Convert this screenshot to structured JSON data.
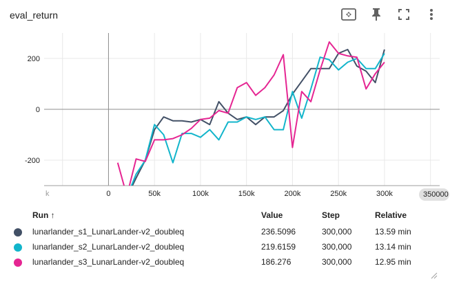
{
  "header": {
    "title": "eval_return",
    "icons": [
      "fit-domain-icon",
      "pin-icon",
      "fullscreen-icon",
      "more-vert-icon"
    ]
  },
  "chart_data": {
    "type": "line",
    "title": "eval_return",
    "xlim": [
      -70000,
      360000
    ],
    "ylim": [
      -300,
      300
    ],
    "x_ticks": [
      0,
      50000,
      100000,
      150000,
      200000,
      250000,
      300000
    ],
    "x_tick_labels": [
      "0",
      "50k",
      "100k",
      "150k",
      "200k",
      "250k",
      "300k"
    ],
    "x_left_partial_label": "k",
    "x_end_label": "350000",
    "y_ticks": [
      -200,
      0,
      200
    ],
    "y_tick_labels": [
      "-200",
      "0",
      "200"
    ],
    "series": [
      {
        "name": "lunarlander_s1_LunarLander-v2_doubleq",
        "color": "#425066",
        "x": [
          20000,
          30000,
          40000,
          50000,
          60000,
          70000,
          80000,
          90000,
          100000,
          110000,
          120000,
          130000,
          140000,
          150000,
          160000,
          170000,
          180000,
          190000,
          200000,
          210000,
          220000,
          230000,
          240000,
          250000,
          260000,
          270000,
          280000,
          290000,
          300000
        ],
        "values": [
          -345,
          -270,
          -200,
          -80,
          -30,
          -45,
          -45,
          -50,
          -40,
          -60,
          30,
          -15,
          -40,
          -30,
          -60,
          -30,
          -30,
          -5,
          60,
          110,
          160,
          160,
          160,
          220,
          235,
          170,
          150,
          105,
          235
        ]
      },
      {
        "name": "lunarlander_s2_LunarLander-v2_doubleq",
        "color": "#12b5cb",
        "x": [
          20000,
          30000,
          40000,
          50000,
          60000,
          70000,
          80000,
          90000,
          100000,
          110000,
          120000,
          130000,
          140000,
          150000,
          160000,
          170000,
          180000,
          190000,
          200000,
          210000,
          220000,
          230000,
          240000,
          250000,
          260000,
          270000,
          280000,
          290000,
          300000
        ],
        "values": [
          -345,
          -255,
          -200,
          -60,
          -100,
          -210,
          -95,
          -95,
          -110,
          -80,
          -120,
          -50,
          -50,
          -30,
          -40,
          -30,
          -80,
          -80,
          70,
          -35,
          80,
          205,
          195,
          155,
          185,
          200,
          160,
          160,
          220
        ]
      },
      {
        "name": "lunarlander_s3_LunarLander-v2_doubleq",
        "color": "#e52592",
        "x": [
          10000,
          20000,
          30000,
          40000,
          50000,
          60000,
          70000,
          80000,
          90000,
          100000,
          110000,
          120000,
          130000,
          140000,
          150000,
          160000,
          170000,
          180000,
          190000,
          200000,
          210000,
          220000,
          230000,
          240000,
          250000,
          260000,
          270000,
          280000,
          290000,
          300000
        ],
        "values": [
          -210,
          -340,
          -195,
          -205,
          -120,
          -120,
          -115,
          -100,
          -75,
          -40,
          -35,
          -5,
          -15,
          85,
          105,
          55,
          85,
          135,
          215,
          -150,
          70,
          30,
          155,
          265,
          220,
          210,
          205,
          80,
          140,
          185
        ]
      }
    ]
  },
  "table": {
    "headers": {
      "run": "Run ↑",
      "value": "Value",
      "step": "Step",
      "relative": "Relative"
    },
    "rows": [
      {
        "run": "lunarlander_s1_LunarLander-v2_doubleq",
        "value": "236.5096",
        "step": "300,000",
        "relative": "13.59 min",
        "color": "#425066"
      },
      {
        "run": "lunarlander_s2_LunarLander-v2_doubleq",
        "value": "219.6159",
        "step": "300,000",
        "relative": "13.14 min",
        "color": "#12b5cb"
      },
      {
        "run": "lunarlander_s3_LunarLander-v2_doubleq",
        "value": "186.276",
        "step": "300,000",
        "relative": "12.95 min",
        "color": "#e52592"
      }
    ]
  }
}
